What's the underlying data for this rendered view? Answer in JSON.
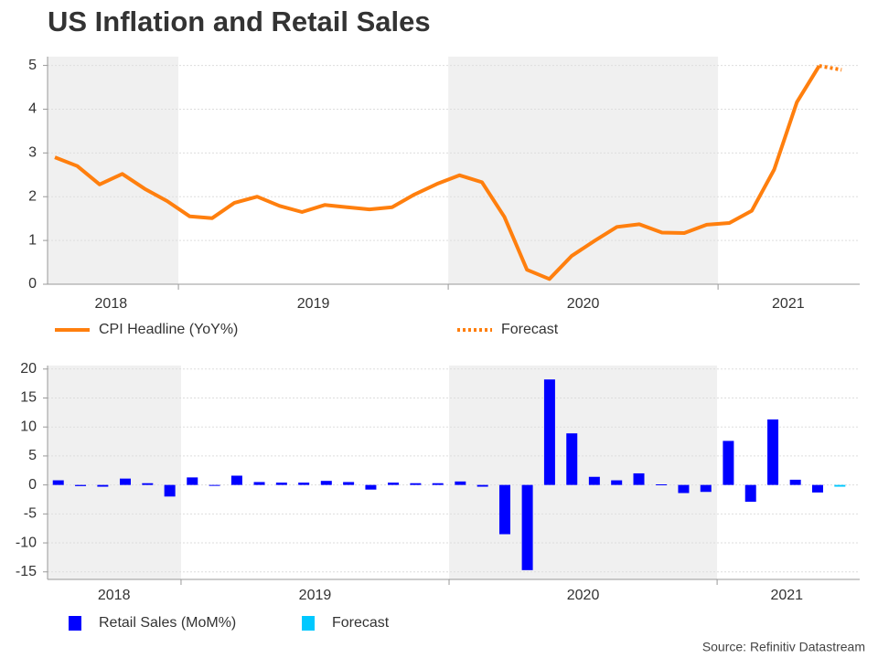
{
  "title": "US Inflation and Retail Sales",
  "source": "Source: Refinitiv Datastream",
  "chart_data": [
    {
      "type": "line",
      "x": [
        2018.542,
        2018.625,
        2018.708,
        2018.792,
        2018.875,
        2018.958,
        2019.042,
        2019.125,
        2019.208,
        2019.292,
        2019.375,
        2019.458,
        2019.542,
        2019.625,
        2019.708,
        2019.792,
        2019.875,
        2019.958,
        2020.042,
        2020.125,
        2020.208,
        2020.292,
        2020.375,
        2020.458,
        2020.542,
        2020.625,
        2020.708,
        2020.792,
        2020.875,
        2020.958,
        2021.042,
        2021.125,
        2021.208,
        2021.292,
        2021.375,
        2021.458
      ],
      "series": [
        {
          "name": "CPI Headline (YoY%)",
          "color": "#ff7f0e",
          "style": "solid",
          "values": [
            2.9,
            2.7,
            2.28,
            2.52,
            2.18,
            1.9,
            1.55,
            1.51,
            1.86,
            2.0,
            1.79,
            1.65,
            1.81,
            1.76,
            1.71,
            1.76,
            2.05,
            2.29,
            2.49,
            2.33,
            1.54,
            0.33,
            0.12,
            0.65,
            0.99,
            1.31,
            1.37,
            1.18,
            1.17,
            1.36,
            1.4,
            1.68,
            2.62,
            4.16,
            4.99,
            null
          ]
        },
        {
          "name": "Forecast",
          "color": "#ff7f0e",
          "style": "dotted",
          "values": [
            null,
            null,
            null,
            null,
            null,
            null,
            null,
            null,
            null,
            null,
            null,
            null,
            null,
            null,
            null,
            null,
            null,
            null,
            null,
            null,
            null,
            null,
            null,
            null,
            null,
            null,
            null,
            null,
            null,
            null,
            null,
            null,
            null,
            null,
            4.99,
            4.9
          ]
        }
      ],
      "xlim": [
        2018.515,
        2021.525
      ],
      "xticks": [
        {
          "value": 2018.75,
          "label": "2018"
        },
        {
          "value": 2019.5,
          "label": "2019"
        },
        {
          "value": 2020.5,
          "label": "2020"
        },
        {
          "value": 2021.26,
          "label": "2021"
        }
      ],
      "year_bounds": [
        2019,
        2020,
        2021
      ],
      "shaded": [
        [
          2018,
          2019
        ],
        [
          2020,
          2021
        ]
      ],
      "ylim": [
        0,
        5.2
      ],
      "yticks": [
        0,
        1,
        2,
        3,
        4,
        5
      ],
      "grid": true
    },
    {
      "type": "bar",
      "x": [
        2018.542,
        2018.625,
        2018.708,
        2018.792,
        2018.875,
        2018.958,
        2019.042,
        2019.125,
        2019.208,
        2019.292,
        2019.375,
        2019.458,
        2019.542,
        2019.625,
        2019.708,
        2019.792,
        2019.875,
        2019.958,
        2020.042,
        2020.125,
        2020.208,
        2020.292,
        2020.375,
        2020.458,
        2020.542,
        2020.625,
        2020.708,
        2020.792,
        2020.875,
        2020.958,
        2021.042,
        2021.125,
        2021.208,
        2021.292,
        2021.375,
        2021.458
      ],
      "series": [
        {
          "name": "Retail Sales (MoM%)",
          "color": "#0000ff",
          "values": [
            0.8,
            -0.2,
            -0.3,
            1.1,
            0.3,
            -2.0,
            1.3,
            -0.1,
            1.6,
            0.5,
            0.4,
            0.4,
            0.7,
            0.5,
            -0.8,
            0.4,
            0.3,
            0.3,
            0.6,
            -0.3,
            -8.5,
            -14.7,
            18.2,
            8.9,
            1.4,
            0.8,
            2.0,
            0.1,
            -1.4,
            -1.2,
            7.6,
            -2.9,
            11.3,
            0.9,
            -1.3,
            null
          ]
        },
        {
          "name": "Forecast",
          "color": "#00c8ff",
          "values": [
            null,
            null,
            null,
            null,
            null,
            null,
            null,
            null,
            null,
            null,
            null,
            null,
            null,
            null,
            null,
            null,
            null,
            null,
            null,
            null,
            null,
            null,
            null,
            null,
            null,
            null,
            null,
            null,
            null,
            null,
            null,
            null,
            null,
            null,
            null,
            -0.3
          ]
        }
      ],
      "xlim": [
        2018.502,
        2021.532
      ],
      "xticks": [
        {
          "value": 2018.75,
          "label": "2018"
        },
        {
          "value": 2019.5,
          "label": "2019"
        },
        {
          "value": 2020.5,
          "label": "2020"
        },
        {
          "value": 2021.26,
          "label": "2021"
        }
      ],
      "year_bounds": [
        2019,
        2020,
        2021
      ],
      "shaded": [
        [
          2018,
          2019
        ],
        [
          2020,
          2021
        ]
      ],
      "ylim": [
        -16.3,
        20.6
      ],
      "yticks": [
        -15,
        -10,
        -5,
        0,
        5,
        10,
        15,
        20
      ],
      "grid": true
    }
  ]
}
